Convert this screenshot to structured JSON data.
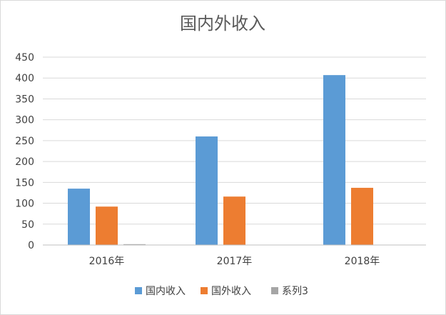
{
  "chart_data": {
    "type": "bar",
    "title": "国内外收入",
    "categories": [
      "2016年",
      "2017年",
      "2018年"
    ],
    "series": [
      {
        "name": "国内收入",
        "color": "#5B9BD5",
        "values": [
          135,
          260,
          407
        ]
      },
      {
        "name": "国外收入",
        "color": "#ED7D31",
        "values": [
          92,
          116,
          137
        ]
      },
      {
        "name": "系列3",
        "color": "#A5A5A5",
        "values": [
          2,
          0,
          0
        ]
      }
    ],
    "ylim": [
      0,
      450
    ],
    "yticks": [
      0,
      50,
      100,
      150,
      200,
      250,
      300,
      350,
      400,
      450
    ],
    "grid": true,
    "legend_position": "bottom"
  }
}
